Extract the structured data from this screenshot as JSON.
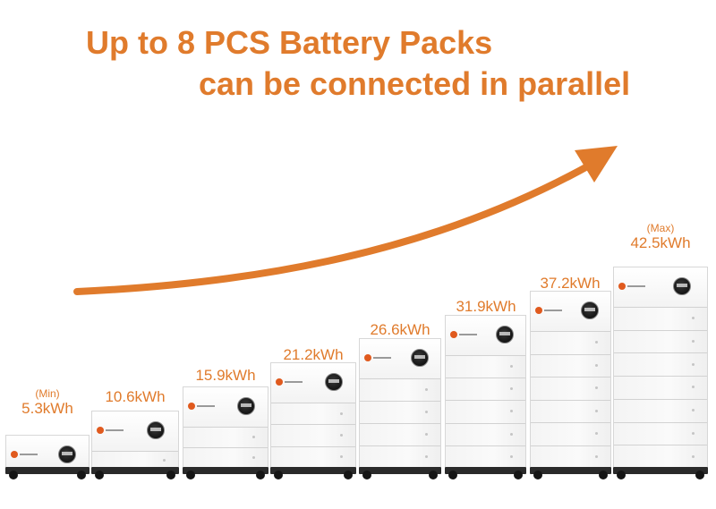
{
  "headline": {
    "line1": "Up to 8 PCS Battery Packs",
    "line2": "can be connected in parallel"
  },
  "colors": {
    "accent": "#e07b2c",
    "cabinet": "#f6f6f6",
    "base": "#2a2a2a"
  },
  "units": [
    {
      "note": "(Min)",
      "capacity": "5.3kWh",
      "packs": 1
    },
    {
      "note": "",
      "capacity": "10.6kWh",
      "packs": 2
    },
    {
      "note": "",
      "capacity": "15.9kWh",
      "packs": 3
    },
    {
      "note": "",
      "capacity": "21.2kWh",
      "packs": 4
    },
    {
      "note": "",
      "capacity": "26.6kWh",
      "packs": 5
    },
    {
      "note": "",
      "capacity": "31.9kWh",
      "packs": 6
    },
    {
      "note": "",
      "capacity": "37.2kWh",
      "packs": 7
    },
    {
      "note": "(Max)",
      "capacity": "42.5kWh",
      "packs": 8
    }
  ],
  "icons": {
    "trend_arrow": "arrow-up-right-icon",
    "brand_logo": "brand-logo-icon",
    "lcd_display": "lcd-display-icon"
  }
}
